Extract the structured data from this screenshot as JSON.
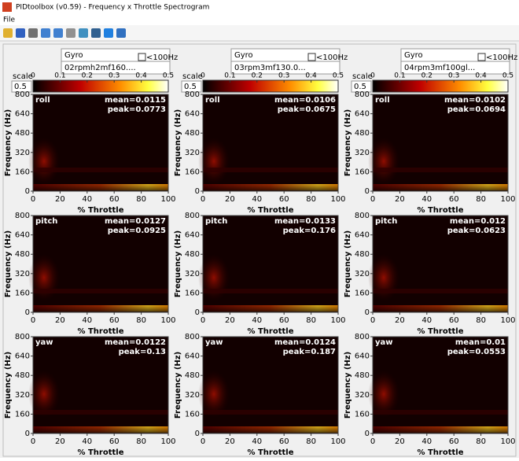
{
  "window_title": "PIDtoolbox (v0.59) - Frequency x Throttle Spectrogram",
  "menu": [
    "File"
  ],
  "scale_label": "scale",
  "scale_value": "0.5",
  "colorbar_ticks": [
    0,
    0.1,
    0.2,
    0.3,
    0.4,
    0.5
  ],
  "axes": {
    "ylabel": "Frequency (Hz)",
    "xlabel": "% Throttle",
    "yticks": [
      0,
      160,
      320,
      480,
      640,
      800
    ],
    "xticks": [
      0,
      20,
      40,
      60,
      80,
      100
    ]
  },
  "columns": [
    {
      "source": "Gyro",
      "file": "02rpmh2mf160....",
      "checkbox": "<100Hz"
    },
    {
      "source": "Gyro",
      "file": "03rpm3mf130.0...",
      "checkbox": "<100Hz"
    },
    {
      "source": "Gyro",
      "file": "04rpm3mf100gl...",
      "checkbox": "<100Hz"
    }
  ],
  "grid": [
    [
      {
        "label": "roll",
        "mean": "mean=0.0115",
        "peak": "peak=0.0773"
      },
      {
        "label": "roll",
        "mean": "mean=0.0106",
        "peak": "peak=0.0675"
      },
      {
        "label": "roll",
        "mean": "mean=0.0102",
        "peak": "peak=0.0694"
      }
    ],
    [
      {
        "label": "pitch",
        "mean": "mean=0.0127",
        "peak": "peak=0.0925"
      },
      {
        "label": "pitch",
        "mean": "mean=0.0133",
        "peak": "peak=0.176"
      },
      {
        "label": "pitch",
        "mean": "mean=0.012",
        "peak": "peak=0.0623"
      }
    ],
    [
      {
        "label": "yaw",
        "mean": "mean=0.0122",
        "peak": "peak=0.13"
      },
      {
        "label": "yaw",
        "mean": "mean=0.0124",
        "peak": "peak=0.187"
      },
      {
        "label": "yaw",
        "mean": "mean=0.01",
        "peak": "peak=0.0553"
      }
    ]
  ]
}
